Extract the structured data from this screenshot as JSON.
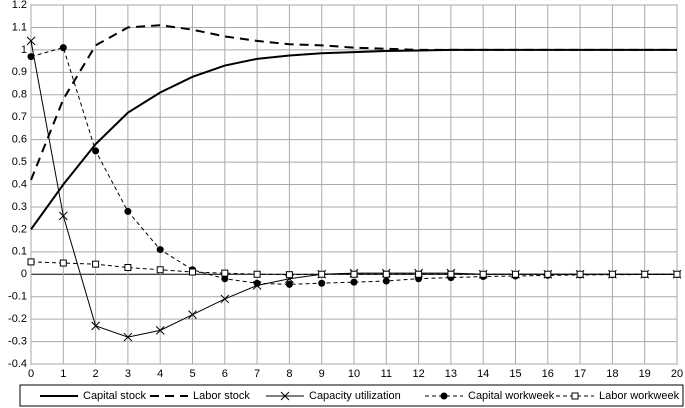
{
  "chart_data": {
    "type": "line",
    "x": [
      0,
      1,
      2,
      3,
      4,
      5,
      6,
      7,
      8,
      9,
      10,
      11,
      12,
      13,
      14,
      15,
      16,
      17,
      18,
      19,
      20
    ],
    "xlim": [
      0,
      20
    ],
    "xticks": [
      0,
      1,
      2,
      3,
      4,
      5,
      6,
      7,
      8,
      9,
      10,
      11,
      12,
      13,
      14,
      15,
      16,
      17,
      18,
      19,
      20
    ],
    "ylim": [
      -0.4,
      1.2
    ],
    "yticks": [
      -0.4,
      -0.3,
      -0.2,
      -0.1,
      0,
      0.1,
      0.2,
      0.3,
      0.4,
      0.5,
      0.6,
      0.7,
      0.8,
      0.9,
      1,
      1.1,
      1.2
    ],
    "grid": true,
    "legend": "bottom",
    "series": [
      {
        "name": "Capital stock",
        "color": "#000000",
        "dash": "solid",
        "width": 2,
        "marker": "none",
        "values": [
          0.2,
          0.4,
          0.58,
          0.72,
          0.81,
          0.88,
          0.93,
          0.96,
          0.975,
          0.985,
          0.99,
          0.995,
          0.997,
          1,
          1,
          1,
          1,
          1,
          1,
          1,
          1
        ]
      },
      {
        "name": "Labor stock",
        "color": "#000000",
        "dash": "dashed",
        "width": 2,
        "marker": "none",
        "values": [
          0.42,
          0.78,
          1.02,
          1.1,
          1.11,
          1.09,
          1.06,
          1.04,
          1.025,
          1.02,
          1.01,
          1.005,
          1,
          1,
          1,
          1,
          1,
          1,
          1,
          1,
          1
        ]
      },
      {
        "name": "Capacity utilization",
        "color": "#000000",
        "dash": "solid",
        "width": 1,
        "marker": "x",
        "values": [
          1.04,
          0.26,
          -0.23,
          -0.28,
          -0.25,
          -0.18,
          -0.11,
          -0.05,
          -0.02,
          0,
          0.005,
          0.005,
          0.005,
          0.005,
          0,
          0,
          0,
          0,
          0,
          0,
          0
        ]
      },
      {
        "name": "Capital workweek",
        "color": "#000000",
        "dash": "dashed",
        "width": 1,
        "marker": "circle",
        "values": [
          0.97,
          1.01,
          0.55,
          0.28,
          0.11,
          0.02,
          -0.02,
          -0.04,
          -0.045,
          -0.04,
          -0.035,
          -0.03,
          -0.02,
          -0.015,
          -0.01,
          -0.008,
          -0.005,
          -0.003,
          -0.002,
          -0.001,
          -0.001
        ]
      },
      {
        "name": "Labor workweek",
        "color": "#000000",
        "dash": "dashed",
        "width": 1,
        "marker": "square",
        "values": [
          0.055,
          0.05,
          0.045,
          0.03,
          0.02,
          0.01,
          0.005,
          0,
          -0.002,
          0,
          0,
          0,
          0,
          0,
          0,
          0,
          0,
          0,
          0,
          0,
          0
        ]
      }
    ]
  }
}
